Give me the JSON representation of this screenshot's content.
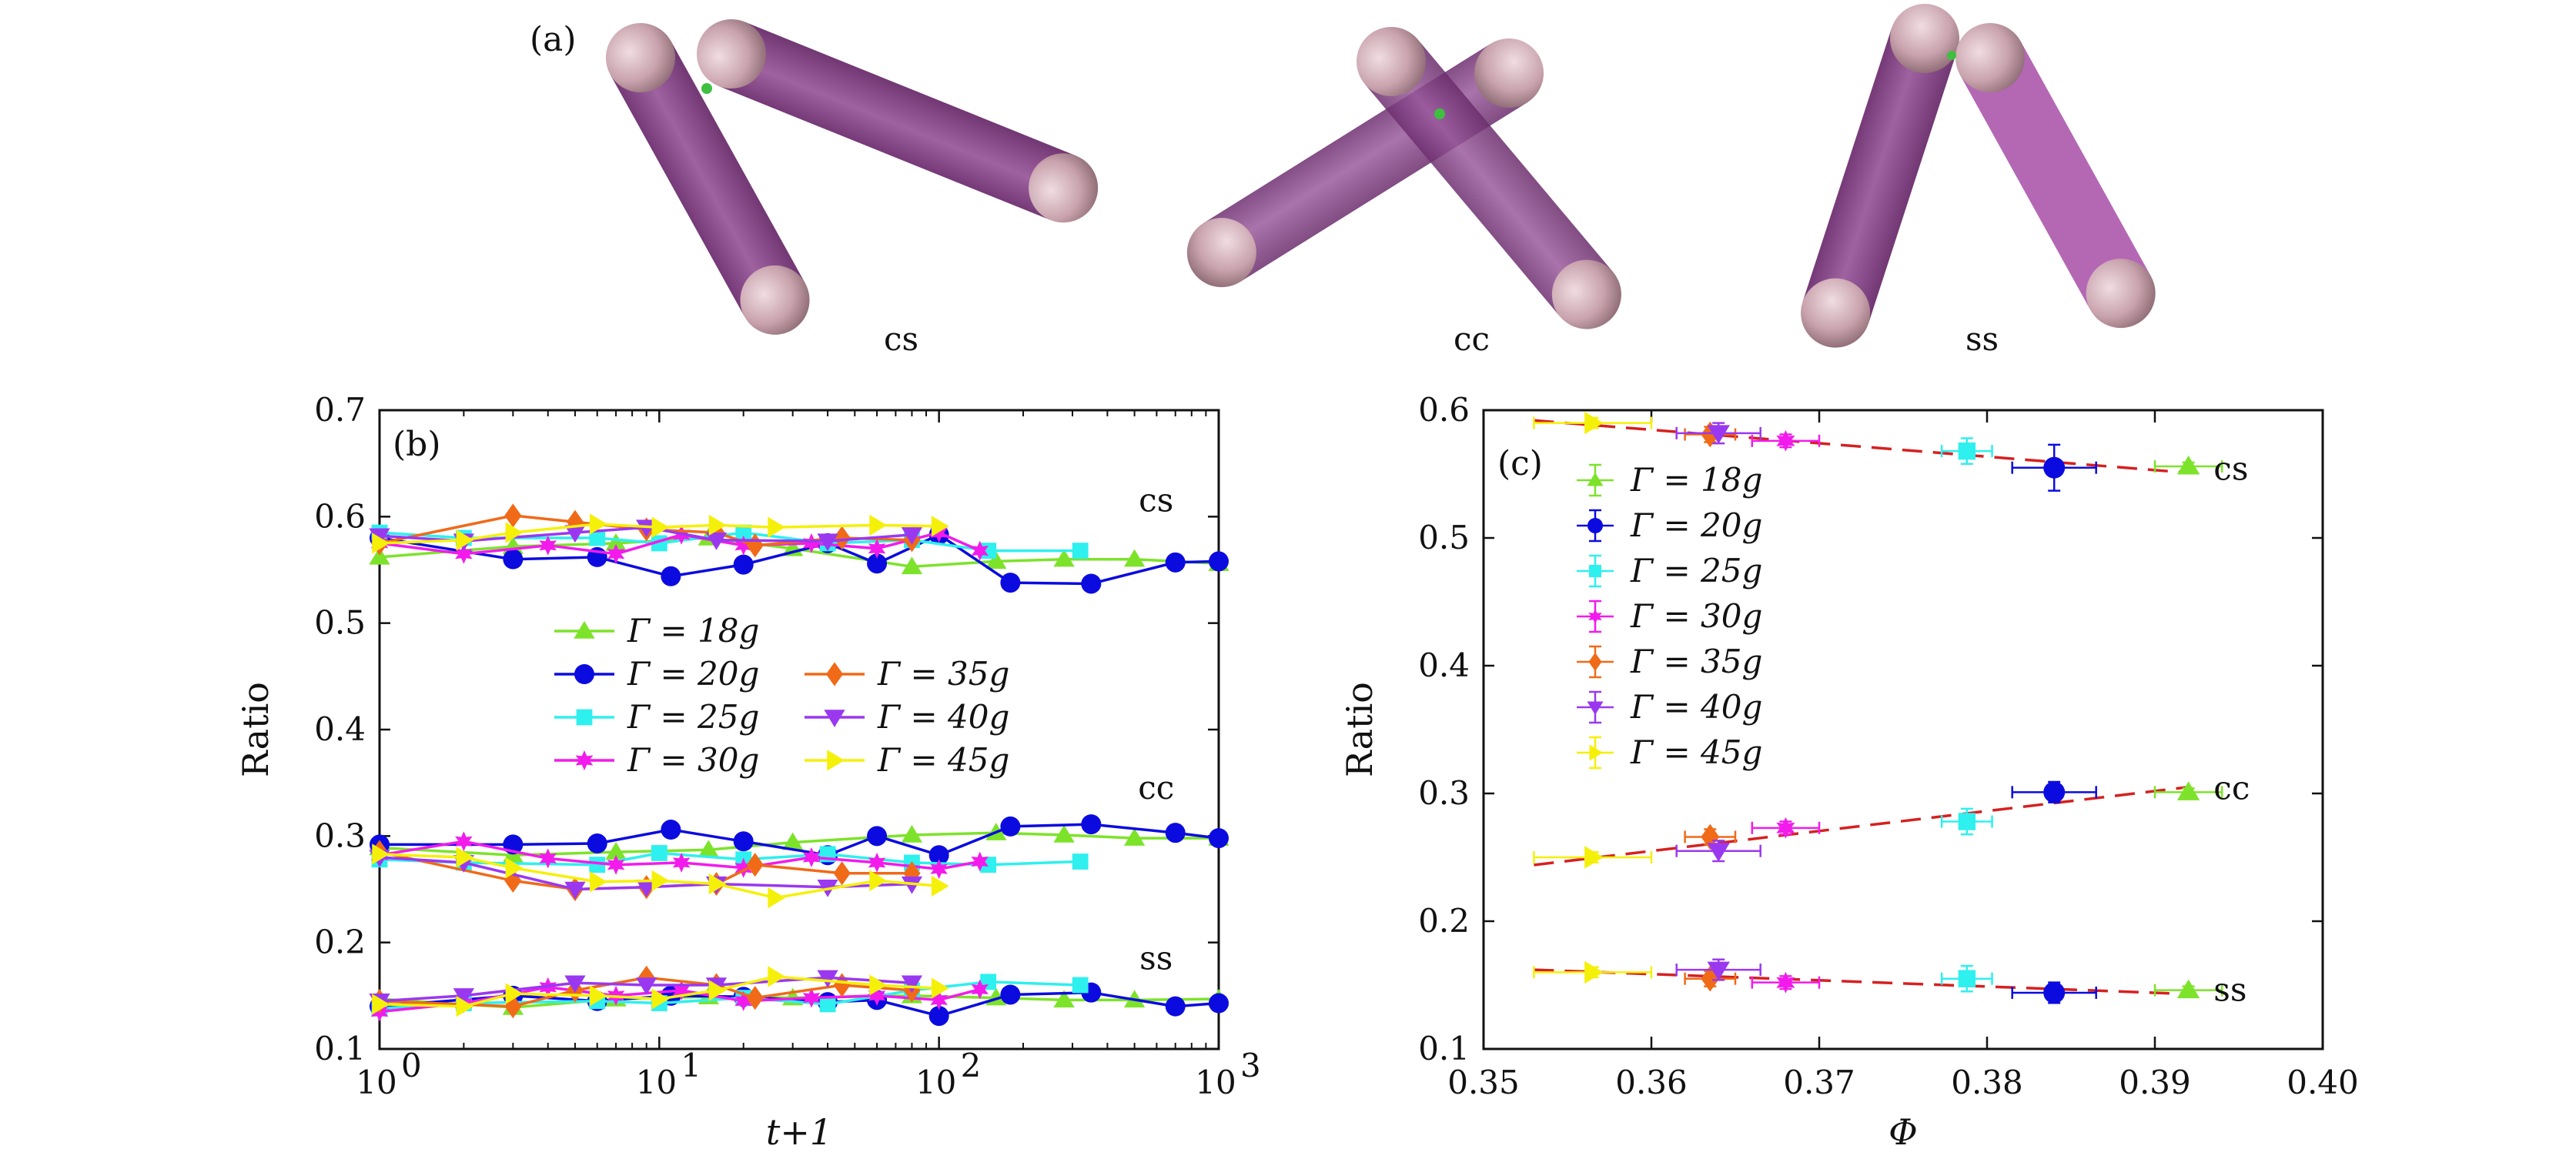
{
  "figure": {
    "panel_a_label": "(a)",
    "rod_configs": [
      {
        "name": "cs",
        "label": "cs"
      },
      {
        "name": "cc",
        "label": "cc"
      },
      {
        "name": "ss",
        "label": "ss"
      }
    ],
    "rod_color": "#8e4a8e",
    "cap_color": "#c9a3ad"
  },
  "chart_data": [
    {
      "panel": "(b)",
      "type": "line",
      "xscale": "log",
      "xlabel": "t+1",
      "ylabel": "Ratio",
      "xlim": [
        1,
        1000
      ],
      "ylim": [
        0.1,
        0.7
      ],
      "xticks": [
        1,
        10,
        100,
        1000
      ],
      "xtick_labels": [
        {
          "base": "10",
          "exp": "0"
        },
        {
          "base": "10",
          "exp": "1"
        },
        {
          "base": "10",
          "exp": "2"
        },
        {
          "base": "10",
          "exp": "3"
        }
      ],
      "yticks": [
        "0.1",
        "0.2",
        "0.3",
        "0.4",
        "0.5",
        "0.6",
        "0.7"
      ],
      "group_labels": [
        {
          "text": "cs",
          "x": 700,
          "y": 0.615
        },
        {
          "text": "cc",
          "x": 700,
          "y": 0.345
        },
        {
          "text": "ss",
          "x": 700,
          "y": 0.185
        }
      ],
      "legend_position": "center",
      "series": [
        {
          "name": "Γ = 18g",
          "color": "#7de32a",
          "marker": "triangle-up",
          "x": [
            1,
            3,
            7,
            15,
            30,
            80,
            160,
            280,
            500,
            1000
          ],
          "cs": [
            0.562,
            0.572,
            0.575,
            0.58,
            0.57,
            0.553,
            0.558,
            0.56,
            0.56,
            0.556
          ],
          "cc": [
            0.289,
            0.282,
            0.285,
            0.287,
            0.294,
            0.301,
            0.303,
            0.301,
            0.298,
            0.298
          ],
          "ss": [
            0.147,
            0.139,
            0.147,
            0.149,
            0.148,
            0.15,
            0.148,
            0.146,
            0.146,
            0.147
          ]
        },
        {
          "name": "Γ = 20g",
          "color": "#0b0be0",
          "marker": "circle",
          "x": [
            1,
            3,
            6,
            11,
            20,
            40,
            60,
            100,
            180,
            350,
            700,
            1000
          ],
          "cs": [
            0.58,
            0.56,
            0.562,
            0.544,
            0.555,
            0.575,
            0.556,
            0.583,
            0.538,
            0.537,
            0.557,
            0.558
          ],
          "cc": [
            0.292,
            0.292,
            0.293,
            0.306,
            0.295,
            0.282,
            0.3,
            0.282,
            0.309,
            0.311,
            0.303,
            0.298
          ],
          "ss": [
            0.14,
            0.15,
            0.145,
            0.15,
            0.149,
            0.144,
            0.146,
            0.131,
            0.151,
            0.153,
            0.14,
            0.143
          ]
        },
        {
          "name": "Γ = 25g",
          "color": "#2ef0ee",
          "marker": "square",
          "x": [
            1,
            2,
            6,
            10,
            20,
            40,
            80,
            150,
            320
          ],
          "cs": [
            0.585,
            0.58,
            0.58,
            0.575,
            0.585,
            0.575,
            0.578,
            0.568,
            0.568
          ],
          "cc": [
            0.278,
            0.275,
            0.273,
            0.284,
            0.278,
            0.283,
            0.275,
            0.273,
            0.276
          ],
          "ss": [
            0.138,
            0.143,
            0.145,
            0.143,
            0.148,
            0.142,
            0.155,
            0.163,
            0.16
          ]
        },
        {
          "name": "Γ = 30g",
          "color": "#f21bec",
          "marker": "star",
          "x": [
            1,
            2,
            4,
            7,
            12,
            20,
            35,
            60,
            100,
            140
          ],
          "cs": [
            0.575,
            0.565,
            0.573,
            0.565,
            0.583,
            0.573,
            0.575,
            0.57,
            0.585,
            0.568
          ],
          "cc": [
            0.282,
            0.295,
            0.279,
            0.273,
            0.275,
            0.27,
            0.28,
            0.275,
            0.269,
            0.276
          ],
          "ss": [
            0.135,
            0.143,
            0.158,
            0.15,
            0.155,
            0.145,
            0.148,
            0.15,
            0.146,
            0.156
          ]
        },
        {
          "name": "Γ = 35g",
          "color": "#f06a18",
          "marker": "diamond",
          "x": [
            1,
            3,
            5,
            9,
            16,
            22,
            45,
            80
          ],
          "cs": [
            0.575,
            0.601,
            0.595,
            0.588,
            0.585,
            0.573,
            0.58,
            0.578
          ],
          "cc": [
            0.285,
            0.258,
            0.25,
            0.252,
            0.255,
            0.273,
            0.265,
            0.265
          ],
          "ss": [
            0.145,
            0.14,
            0.155,
            0.167,
            0.16,
            0.148,
            0.16,
            0.155
          ]
        },
        {
          "name": "Γ = 40g",
          "color": "#9a38f0",
          "marker": "triangle-down",
          "x": [
            1,
            2,
            5,
            9,
            16,
            40,
            80
          ],
          "cs": [
            0.582,
            0.577,
            0.585,
            0.59,
            0.578,
            0.577,
            0.583
          ],
          "cc": [
            0.28,
            0.275,
            0.25,
            0.252,
            0.255,
            0.252,
            0.255
          ],
          "ss": [
            0.145,
            0.15,
            0.162,
            0.16,
            0.16,
            0.167,
            0.162
          ]
        },
        {
          "name": "Γ = 45g",
          "color": "#f5f00a",
          "marker": "triangle-right",
          "x": [
            1,
            2,
            3,
            6,
            10,
            16,
            26,
            60,
            100
          ],
          "cs": [
            0.575,
            0.578,
            0.585,
            0.593,
            0.59,
            0.592,
            0.59,
            0.592,
            0.591
          ],
          "cc": [
            0.283,
            0.28,
            0.27,
            0.257,
            0.258,
            0.255,
            0.242,
            0.258,
            0.253
          ],
          "ss": [
            0.142,
            0.14,
            0.152,
            0.15,
            0.147,
            0.155,
            0.168,
            0.16,
            0.157
          ]
        }
      ]
    },
    {
      "panel": "(c)",
      "type": "scatter",
      "xlabel": "Φ",
      "ylabel": "Ratio",
      "xlim": [
        0.35,
        0.4
      ],
      "ylim": [
        0.1,
        0.6
      ],
      "xticks": [
        "0.35",
        "0.36",
        "0.37",
        "0.38",
        "0.39",
        "0.40"
      ],
      "yticks": [
        "0.1",
        "0.2",
        "0.3",
        "0.4",
        "0.5",
        "0.6"
      ],
      "group_labels": [
        {
          "text": "cs",
          "x": 0.3935,
          "y": 0.554
        },
        {
          "text": "cc",
          "x": 0.3935,
          "y": 0.304
        },
        {
          "text": "ss",
          "x": 0.3935,
          "y": 0.146
        }
      ],
      "legend_position": "top-left",
      "fit_color": "#d62020",
      "fits": {
        "cs": {
          "x": [
            0.353,
            0.392
          ],
          "y": [
            0.592,
            0.551
          ]
        },
        "cc": {
          "x": [
            0.353,
            0.392
          ],
          "y": [
            0.244,
            0.305
          ]
        },
        "ss": {
          "x": [
            0.353,
            0.392
          ],
          "y": [
            0.162,
            0.143
          ]
        }
      },
      "series": [
        {
          "name": "Γ = 18g",
          "color": "#7de32a",
          "marker": "triangle-up",
          "x": 0.392,
          "xerr": 0.002,
          "cs": 0.556,
          "cc": 0.301,
          "ss": 0.146,
          "yerr": 0.003
        },
        {
          "name": "Γ = 20g",
          "color": "#0b0be0",
          "marker": "circle",
          "x": 0.384,
          "xerr": 0.0025,
          "cs": 0.555,
          "cc": 0.301,
          "ss": 0.144,
          "yerr_cs": 0.018,
          "yerr": 0.008
        },
        {
          "name": "Γ = 25g",
          "color": "#2ef0ee",
          "marker": "square",
          "x": 0.3788,
          "xerr": 0.0015,
          "cs": 0.568,
          "cc": 0.278,
          "ss": 0.155,
          "yerr": 0.01
        },
        {
          "name": "Γ = 30g",
          "color": "#f21bec",
          "marker": "star",
          "x": 0.368,
          "xerr": 0.002,
          "cs": 0.576,
          "cc": 0.273,
          "ss": 0.152,
          "yerr": 0.005
        },
        {
          "name": "Γ = 35g",
          "color": "#f06a18",
          "marker": "diamond",
          "x": 0.3635,
          "xerr": 0.0015,
          "cs": 0.581,
          "cc": 0.266,
          "ss": 0.155,
          "yerr": 0.006
        },
        {
          "name": "Γ = 40g",
          "color": "#9a38f0",
          "marker": "triangle-down",
          "x": 0.364,
          "xerr": 0.0025,
          "cs": 0.582,
          "cc": 0.255,
          "ss": 0.162,
          "yerr": 0.008
        },
        {
          "name": "Γ = 45g",
          "color": "#f5f00a",
          "marker": "triangle-right",
          "x": 0.3565,
          "xerr": 0.0035,
          "cs": 0.59,
          "cc": 0.25,
          "ss": 0.16,
          "yerr": 0.004
        }
      ]
    }
  ]
}
